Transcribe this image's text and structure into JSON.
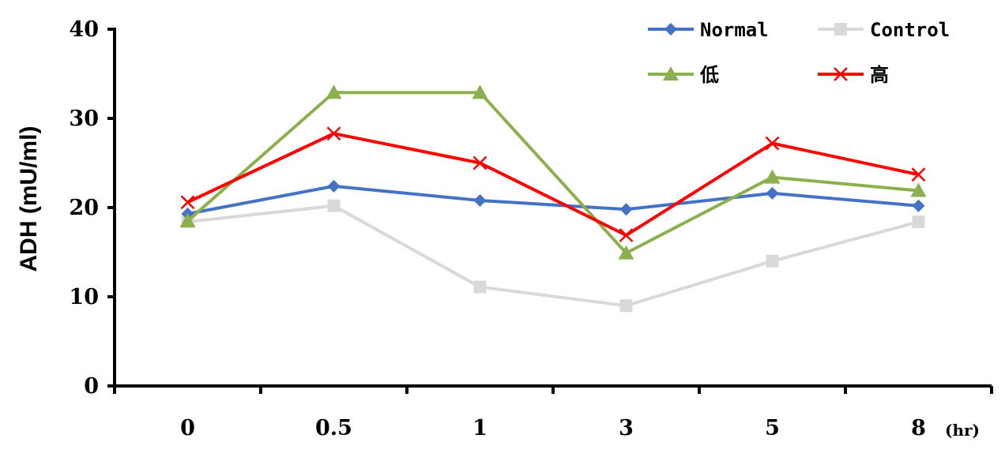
{
  "chart_data": {
    "type": "line",
    "categories": [
      "0",
      "0.5",
      "1",
      "3",
      "5",
      "8"
    ],
    "x_unit_label": "(hr)",
    "ylabel": "ADH (mU/ml)",
    "xlabel": "",
    "title": "",
    "ylim": [
      0,
      40
    ],
    "yticks": [
      "0",
      "10",
      "20",
      "30",
      "40"
    ],
    "grid": false,
    "legend_position": "top-right",
    "series": [
      {
        "name": "Normal",
        "values": [
          19.3,
          22.4,
          20.8,
          19.8,
          21.6,
          20.2
        ],
        "color": "#4472C4",
        "marker": "diamond"
      },
      {
        "name": "Control",
        "values": [
          18.4,
          20.2,
          11.1,
          9.0,
          14.0,
          18.4
        ],
        "color": "#D9D9D9",
        "marker": "square"
      },
      {
        "name": "低",
        "values": [
          18.5,
          32.9,
          32.9,
          14.9,
          23.4,
          21.9
        ],
        "color": "#8DB04F",
        "marker": "triangle"
      },
      {
        "name": "高",
        "values": [
          20.6,
          28.3,
          25.0,
          16.9,
          27.2,
          23.7
        ],
        "color": "#FF0000",
        "marker": "x"
      }
    ]
  }
}
